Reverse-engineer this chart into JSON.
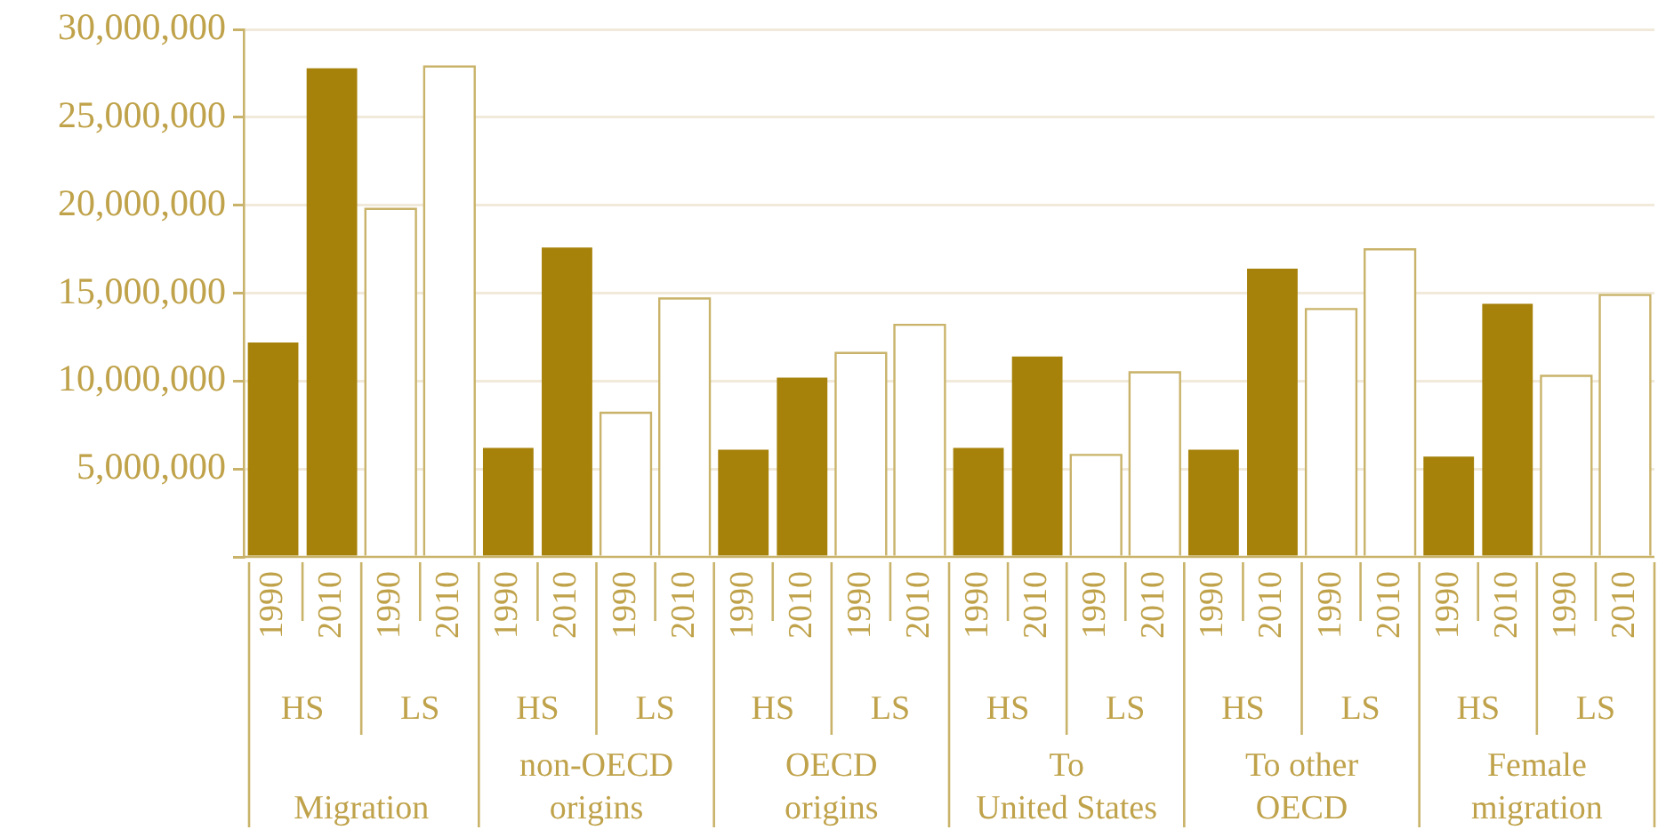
{
  "chart_data": {
    "type": "bar",
    "categories": [
      "1990",
      "2010",
      "1990",
      "2010",
      "1990",
      "2010",
      "1990",
      "2010",
      "1990",
      "2010",
      "1990",
      "2010",
      "1990",
      "2010",
      "1990",
      "2010",
      "1990",
      "2010",
      "1990",
      "2010",
      "1990",
      "2010",
      "1990",
      "2010"
    ],
    "values": [
      12200000,
      27800000,
      19800000,
      27900000,
      6200000,
      17600000,
      8200000,
      14700000,
      6100000,
      10200000,
      11600000,
      13200000,
      6200000,
      11400000,
      5800000,
      10500000,
      6100000,
      16400000,
      14100000,
      17500000,
      5700000,
      14400000,
      10300000,
      14900000
    ],
    "colors": [
      "#a6820a",
      "#a6820a",
      "#ffffff",
      "#ffffff",
      "#a6820a",
      "#a6820a",
      "#ffffff",
      "#ffffff",
      "#a6820a",
      "#a6820a",
      "#ffffff",
      "#ffffff",
      "#a6820a",
      "#a6820a",
      "#ffffff",
      "#ffffff",
      "#a6820a",
      "#a6820a",
      "#ffffff",
      "#ffffff",
      "#a6820a",
      "#a6820a",
      "#ffffff",
      "#ffffff"
    ],
    "ylim": [
      0,
      30000000
    ],
    "yticks": [
      {
        "value": 0,
        "label": null
      },
      {
        "value": 5000000,
        "label": "5,000,000"
      },
      {
        "value": 10000000,
        "label": "10,000,000"
      },
      {
        "value": 15000000,
        "label": "15,000,000"
      },
      {
        "value": 20000000,
        "label": "20,000,000"
      },
      {
        "value": 25000000,
        "label": "25,000,000"
      },
      {
        "value": 30000000,
        "label": "30,000,000"
      }
    ],
    "grid": "y",
    "legend": false,
    "annotations": [
      "HS",
      "LS",
      "HS",
      "LS",
      "HS",
      "LS",
      "HS",
      "LS",
      "HS",
      "LS",
      "HS",
      "LS",
      "Migration",
      "non-OECD\norigins",
      "OECD\norigins",
      "To\nUnited States",
      "To other\nOECD",
      "Female\nmigration"
    ]
  }
}
